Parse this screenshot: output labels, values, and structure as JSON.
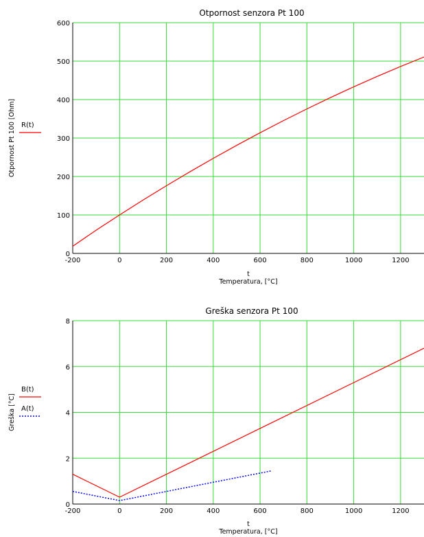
{
  "chart_data": [
    {
      "type": "line",
      "title": "Otpornost senzora Pt 100",
      "xvar": "t",
      "xlabel": "Temperatura, [°C]",
      "ylabel": "Otpornost Pt 100 [Ohm]",
      "xlim": [
        -200,
        1300
      ],
      "ylim": [
        0,
        600
      ],
      "xticks": [
        -200,
        0,
        200,
        400,
        600,
        800,
        1000,
        1200
      ],
      "yticks": [
        0,
        100,
        200,
        300,
        400,
        500,
        600
      ],
      "grid": true,
      "legend_position": "left",
      "series": [
        {
          "name": "R(t)",
          "color": "#ff0000",
          "style": "solid",
          "x": [
            -200,
            -100,
            0,
            100,
            200,
            300,
            400,
            500,
            600,
            700,
            800,
            900,
            1000,
            1100,
            1200,
            1300
          ],
          "y": [
            18.5,
            60.3,
            100,
            138.5,
            175.9,
            212.1,
            247.1,
            280.9,
            313.7,
            345.3,
            375.7,
            405,
            433.2,
            460.2,
            486,
            510.7
          ]
        }
      ]
    },
    {
      "type": "line",
      "title": "Greška senzora Pt 100",
      "xvar": "t",
      "xlabel": "Temperatura, [°C]",
      "ylabel": "Greška [°C]",
      "xlim": [
        -200,
        1300
      ],
      "ylim": [
        0,
        8
      ],
      "xticks": [
        -200,
        0,
        200,
        400,
        600,
        800,
        1000,
        1200
      ],
      "yticks": [
        0,
        2,
        4,
        6,
        8
      ],
      "grid": true,
      "legend_position": "left",
      "series": [
        {
          "name": "B(t)",
          "color": "#ff0000",
          "style": "solid",
          "x": [
            -200,
            0,
            1300
          ],
          "y": [
            1.3,
            0.3,
            6.8
          ]
        },
        {
          "name": "A(t)",
          "color": "#0000ff",
          "style": "dotted",
          "x": [
            -200,
            0,
            650
          ],
          "y": [
            0.55,
            0.15,
            1.45
          ]
        }
      ]
    }
  ]
}
